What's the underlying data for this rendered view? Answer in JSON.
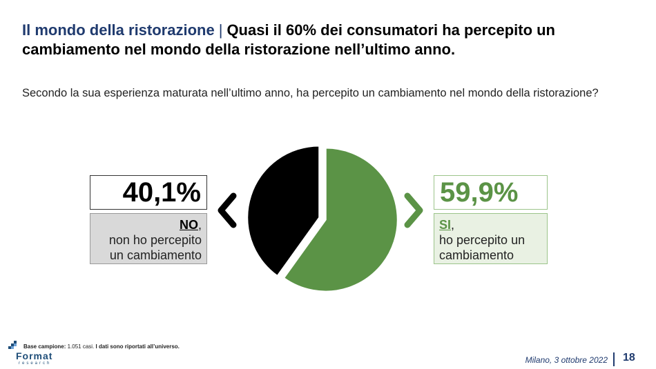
{
  "header": {
    "topic": "Il mondo della ristorazione",
    "separator": "|",
    "headline": "Quasi il 60% dei consumatori ha percepito un cambiamento nel mondo della ristorazione nell’ultimo anno."
  },
  "question": "Secondo la sua esperienza maturata nell’ultimo anno, ha percepito un cambiamento nel mondo della ristorazione?",
  "answers": {
    "no": {
      "percent_label": "40,1%",
      "key": "NO",
      "suffix": ",",
      "line1": "non ho percepito",
      "line2": "un cambiamento",
      "color": "#000000"
    },
    "si": {
      "percent_label": "59,9%",
      "key": "SI",
      "suffix": ",",
      "line1": "ho percepito un",
      "line2": "cambiamento",
      "color": "#5b9346"
    }
  },
  "chart_data": {
    "type": "pie",
    "categories": [
      "NO",
      "SI"
    ],
    "values": [
      40.1,
      59.9
    ],
    "colors": [
      "#000000",
      "#5b9346"
    ],
    "exploded": true
  },
  "footer": {
    "base_label": "Base campione:",
    "base_value": "1.051 casi.",
    "base_note": "I dati sono riportati all’universo.",
    "logo_name": "Format",
    "logo_sub": "research",
    "date": "Milano, 3 ottobre 2022",
    "page": "18"
  }
}
